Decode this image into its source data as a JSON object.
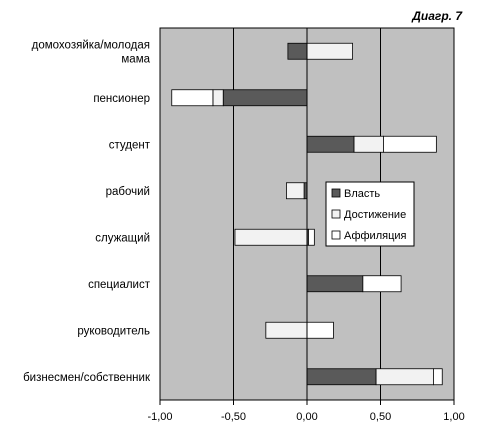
{
  "figure_label": "Диагр. 7",
  "chart_data": {
    "type": "bar",
    "orientation": "horizontal",
    "stacked": true,
    "categories": [
      "домохозяйка/молодая мама",
      "пенсионер",
      "студент",
      "рабочий",
      "служащий",
      "специалист",
      "руководитель",
      "бизнесмен/собственник"
    ],
    "category_lines": [
      [
        "домохозяйка/молодая",
        "мама"
      ],
      [
        "пенсионер"
      ],
      [
        "студент"
      ],
      [
        "рабочий"
      ],
      [
        "служащий"
      ],
      [
        "специалист"
      ],
      [
        "руководитель"
      ],
      [
        "бизнесмен/собственник"
      ]
    ],
    "series": [
      {
        "name": "Власть",
        "color": "#5a5a5a",
        "values": [
          -0.13,
          -0.57,
          0.32,
          -0.02,
          0.01,
          0.38,
          0.0,
          0.47
        ]
      },
      {
        "name": "Достижение",
        "color": "#f2f2f2",
        "values": [
          0.31,
          -0.07,
          0.2,
          -0.12,
          -0.49,
          0.0,
          -0.28,
          0.39
        ]
      },
      {
        "name": "Аффиляция",
        "color": "#ffffff",
        "values": [
          0.0,
          -0.28,
          0.36,
          0.0,
          0.04,
          0.26,
          0.18,
          0.06
        ]
      }
    ],
    "xlim": [
      -1.0,
      1.0
    ],
    "xticks": [
      -1.0,
      -0.5,
      0.0,
      0.5,
      1.0
    ],
    "xtick_labels": [
      "-1,00",
      "-0,50",
      "0,00",
      "0,50",
      "1,00"
    ],
    "grid": "vertical",
    "plot_background": "#c0c0c0",
    "legend_position": "center-right",
    "xlabel": "",
    "ylabel": ""
  }
}
